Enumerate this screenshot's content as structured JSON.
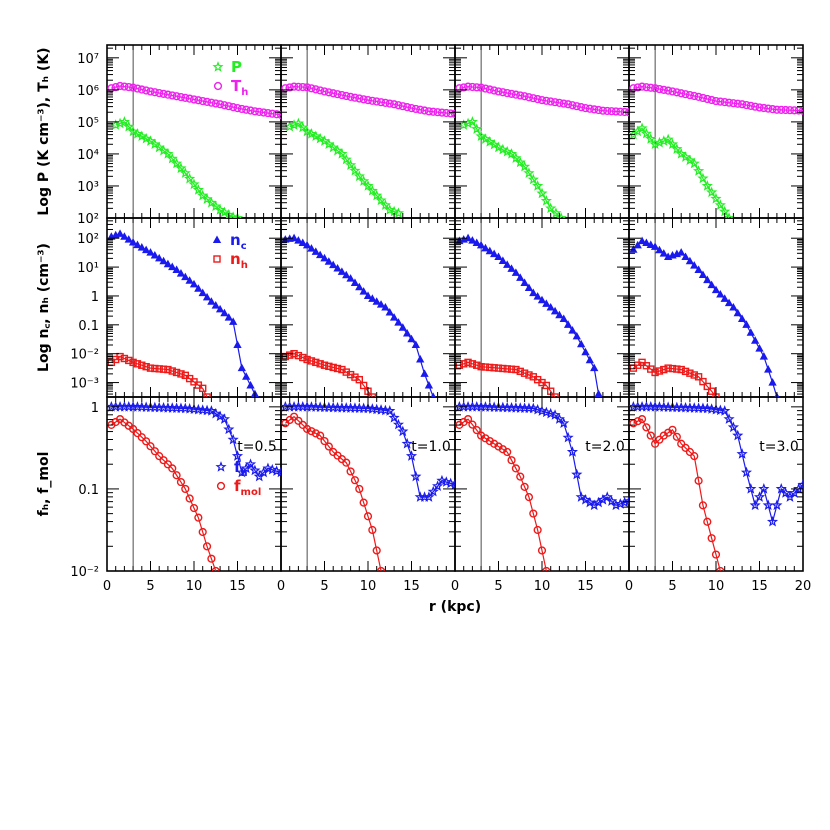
{
  "chart_data": {
    "type": "line",
    "layout": "3 rows x 4 columns of panels, shared x axis",
    "xlabel": "r  (kpc)",
    "xlim": [
      0,
      20
    ],
    "x_ticks": [
      "0",
      "5",
      "10",
      "15",
      "0",
      "5",
      "10",
      "15",
      "0",
      "5",
      "10",
      "15",
      "0",
      "5",
      "10",
      "15",
      "20"
    ],
    "marker_line_x": 3,
    "rows": [
      {
        "ylabel": "Log P (K cm⁻³), Tₕ (K)",
        "scale": "log",
        "ylim_log10": [
          2,
          7.4
        ],
        "y_ticks": [
          {
            "v": 2,
            "t": "10²"
          },
          {
            "v": 3,
            "t": "10³"
          },
          {
            "v": 4,
            "t": "10⁴"
          },
          {
            "v": 5,
            "t": "10⁵"
          },
          {
            "v": 6,
            "t": "10⁶"
          },
          {
            "v": 7,
            "t": "10⁷"
          }
        ],
        "legend": [
          {
            "name": "P",
            "color": "#22ee22",
            "marker": "star"
          },
          {
            "name": "Th",
            "sub": "h",
            "base": "T",
            "color": "#ee22ee",
            "marker": "circle"
          }
        ]
      },
      {
        "ylabel": "Log n꜀, nₕ (cm⁻³)",
        "scale": "log",
        "ylim_log10": [
          -3.5,
          2.7
        ],
        "y_ticks": [
          {
            "v": -3,
            "t": "10⁻³"
          },
          {
            "v": -2,
            "t": "10⁻²"
          },
          {
            "v": -1,
            "t": "0.1"
          },
          {
            "v": 0,
            "t": "1"
          },
          {
            "v": 1,
            "t": "10¹"
          },
          {
            "v": 2,
            "t": "10²"
          }
        ],
        "legend": [
          {
            "name": "nc",
            "base": "n",
            "sub": "c",
            "color": "#1a1aee",
            "marker": "triangle"
          },
          {
            "name": "nh",
            "base": "n",
            "sub": "h",
            "color": "#ee1a1a",
            "marker": "square"
          }
        ]
      },
      {
        "ylabel": "fₕ, f_mol",
        "scale": "log",
        "ylim_log10": [
          -2,
          0.12
        ],
        "y_ticks": [
          {
            "v": -2,
            "t": "10⁻²"
          },
          {
            "v": -1,
            "t": "0.1"
          },
          {
            "v": 0,
            "t": "1"
          }
        ],
        "legend": [
          {
            "name": "fh",
            "base": "f",
            "sub": "h",
            "color": "#1a1aee",
            "marker": "star"
          },
          {
            "name": "fmol",
            "base": "f",
            "sub": "mol",
            "color": "#ee1a1a",
            "marker": "circle"
          }
        ]
      }
    ],
    "panels": [
      {
        "time_label": "t=0.5",
        "P": [
          [
            1,
            4.9
          ],
          [
            2,
            5.0
          ],
          [
            3,
            4.7
          ],
          [
            5,
            4.4
          ],
          [
            7,
            4.0
          ],
          [
            9,
            3.4
          ],
          [
            11,
            2.7
          ],
          [
            13,
            2.25
          ],
          [
            15,
            1.95
          ]
        ],
        "Th": [
          [
            0.5,
            6.05
          ],
          [
            1.5,
            6.12
          ],
          [
            3,
            6.07
          ],
          [
            5,
            5.95
          ],
          [
            8,
            5.8
          ],
          [
            10,
            5.7
          ],
          [
            13,
            5.55
          ],
          [
            15,
            5.43
          ],
          [
            17,
            5.33
          ],
          [
            20,
            5.22
          ]
        ],
        "nc": [
          [
            0.5,
            2.05
          ],
          [
            1.5,
            2.15
          ],
          [
            3,
            1.85
          ],
          [
            5,
            1.5
          ],
          [
            8,
            0.9
          ],
          [
            10,
            0.4
          ],
          [
            12,
            -0.2
          ],
          [
            13.5,
            -0.6
          ],
          [
            14.5,
            -0.9
          ],
          [
            15.5,
            -2.5
          ],
          [
            17,
            -3.4
          ]
        ],
        "nh": [
          [
            0.5,
            -2.3
          ],
          [
            1.5,
            -2.1
          ],
          [
            3,
            -2.3
          ],
          [
            5,
            -2.5
          ],
          [
            7,
            -2.55
          ],
          [
            9,
            -2.75
          ],
          [
            11,
            -3.2
          ],
          [
            11.5,
            -3.5
          ]
        ],
        "fh": [
          [
            0.5,
            0.0
          ],
          [
            3,
            0.0
          ],
          [
            6,
            -0.01
          ],
          [
            9,
            -0.02
          ],
          [
            12,
            -0.05
          ],
          [
            13.5,
            -0.15
          ],
          [
            14.5,
            -0.4
          ],
          [
            15.5,
            -0.8
          ],
          [
            16.5,
            -0.7
          ],
          [
            17.5,
            -0.85
          ],
          [
            18.5,
            -0.75
          ],
          [
            20,
            -0.8
          ]
        ],
        "fmol": [
          [
            0.5,
            -0.22
          ],
          [
            1.5,
            -0.15
          ],
          [
            3,
            -0.27
          ],
          [
            4.5,
            -0.42
          ],
          [
            6,
            -0.6
          ],
          [
            7.5,
            -0.75
          ],
          [
            9,
            -1.0
          ],
          [
            10.5,
            -1.35
          ],
          [
            11.5,
            -1.7
          ],
          [
            12.5,
            -2.0
          ]
        ]
      },
      {
        "time_label": "t=1.0",
        "P": [
          [
            1,
            4.85
          ],
          [
            2,
            4.95
          ],
          [
            3,
            4.7
          ],
          [
            5,
            4.4
          ],
          [
            7,
            4.0
          ],
          [
            9,
            3.3
          ],
          [
            11,
            2.7
          ],
          [
            12.5,
            2.25
          ],
          [
            13.5,
            2.15
          ]
        ],
        "Th": [
          [
            0.5,
            6.05
          ],
          [
            1.5,
            6.1
          ],
          [
            3,
            6.08
          ],
          [
            5,
            5.95
          ],
          [
            8,
            5.78
          ],
          [
            10,
            5.68
          ],
          [
            13,
            5.55
          ],
          [
            15,
            5.43
          ],
          [
            17,
            5.33
          ],
          [
            20,
            5.25
          ]
        ],
        "nc": [
          [
            0.5,
            1.95
          ],
          [
            1.5,
            2.0
          ],
          [
            3,
            1.75
          ],
          [
            5,
            1.3
          ],
          [
            8,
            0.6
          ],
          [
            10,
            0.0
          ],
          [
            12,
            -0.4
          ],
          [
            14,
            -1.1
          ],
          [
            15.5,
            -1.7
          ],
          [
            16.5,
            -2.7
          ],
          [
            17.5,
            -3.5
          ]
        ],
        "nh": [
          [
            0.5,
            -2.1
          ],
          [
            1.5,
            -2.0
          ],
          [
            3,
            -2.2
          ],
          [
            5,
            -2.4
          ],
          [
            7,
            -2.55
          ],
          [
            9,
            -2.9
          ],
          [
            10.5,
            -3.5
          ]
        ],
        "fh": [
          [
            0.5,
            0.0
          ],
          [
            3,
            0.0
          ],
          [
            6,
            -0.01
          ],
          [
            10,
            -0.02
          ],
          [
            12.5,
            -0.05
          ],
          [
            14,
            -0.3
          ],
          [
            15,
            -0.6
          ],
          [
            16,
            -1.1
          ],
          [
            17,
            -1.1
          ],
          [
            18.5,
            -0.9
          ],
          [
            20,
            -0.95
          ]
        ],
        "fmol": [
          [
            0.5,
            -0.2
          ],
          [
            1.5,
            -0.12
          ],
          [
            3,
            -0.27
          ],
          [
            4.5,
            -0.35
          ],
          [
            6,
            -0.55
          ],
          [
            7.5,
            -0.68
          ],
          [
            9,
            -1.0
          ],
          [
            10.5,
            -1.5
          ],
          [
            11.5,
            -2.0
          ]
        ]
      },
      {
        "time_label": "t=2.0",
        "P": [
          [
            1,
            4.9
          ],
          [
            2,
            5.0
          ],
          [
            3,
            4.55
          ],
          [
            5,
            4.2
          ],
          [
            6.5,
            4.0
          ],
          [
            8,
            3.6
          ],
          [
            9.5,
            3.0
          ],
          [
            11,
            2.3
          ],
          [
            12.2,
            2.0
          ]
        ],
        "Th": [
          [
            0.5,
            6.05
          ],
          [
            1.5,
            6.1
          ],
          [
            3,
            6.07
          ],
          [
            5,
            5.95
          ],
          [
            8,
            5.8
          ],
          [
            10,
            5.68
          ],
          [
            13,
            5.55
          ],
          [
            15,
            5.43
          ],
          [
            17,
            5.35
          ],
          [
            20,
            5.3
          ]
        ],
        "nc": [
          [
            0.5,
            1.9
          ],
          [
            1.5,
            2.0
          ],
          [
            3,
            1.75
          ],
          [
            5,
            1.35
          ],
          [
            7,
            0.8
          ],
          [
            9,
            0.1
          ],
          [
            11,
            -0.4
          ],
          [
            12.5,
            -0.8
          ],
          [
            14,
            -1.4
          ],
          [
            16,
            -2.5
          ],
          [
            16.5,
            -3.4
          ]
        ],
        "nh": [
          [
            0.5,
            -2.4
          ],
          [
            1.5,
            -2.3
          ],
          [
            3,
            -2.45
          ],
          [
            5,
            -2.5
          ],
          [
            7,
            -2.55
          ],
          [
            9,
            -2.8
          ],
          [
            10.5,
            -3.1
          ],
          [
            11.5,
            -3.5
          ]
        ],
        "fh": [
          [
            0.5,
            0.0
          ],
          [
            3,
            0.0
          ],
          [
            6,
            -0.01
          ],
          [
            9,
            -0.02
          ],
          [
            11.5,
            -0.1
          ],
          [
            12.5,
            -0.2
          ],
          [
            13.5,
            -0.55
          ],
          [
            14.5,
            -1.1
          ],
          [
            16,
            -1.2
          ],
          [
            17.5,
            -1.1
          ],
          [
            18.5,
            -1.2
          ],
          [
            20,
            -1.15
          ]
        ],
        "fmol": [
          [
            0.5,
            -0.22
          ],
          [
            1.5,
            -0.15
          ],
          [
            3,
            -0.35
          ],
          [
            4.5,
            -0.45
          ],
          [
            6,
            -0.55
          ],
          [
            7.5,
            -0.85
          ],
          [
            8.5,
            -1.1
          ],
          [
            9.5,
            -1.5
          ],
          [
            10.5,
            -2.0
          ]
        ]
      },
      {
        "time_label": "t=3.0",
        "P": [
          [
            0.5,
            4.6
          ],
          [
            1.5,
            4.8
          ],
          [
            3,
            4.3
          ],
          [
            4.5,
            4.45
          ],
          [
            6,
            4.0
          ],
          [
            7.5,
            3.7
          ],
          [
            9,
            3.0
          ],
          [
            10.5,
            2.4
          ],
          [
            11.5,
            2.0
          ]
        ],
        "Th": [
          [
            0.5,
            6.05
          ],
          [
            1.5,
            6.1
          ],
          [
            3,
            6.05
          ],
          [
            5,
            5.95
          ],
          [
            8,
            5.78
          ],
          [
            10,
            5.65
          ],
          [
            13,
            5.55
          ],
          [
            15,
            5.45
          ],
          [
            17,
            5.38
          ],
          [
            20,
            5.35
          ]
        ],
        "nc": [
          [
            0.5,
            1.6
          ],
          [
            1.5,
            1.9
          ],
          [
            3,
            1.7
          ],
          [
            4.5,
            1.35
          ],
          [
            6,
            1.5
          ],
          [
            8,
            0.9
          ],
          [
            10,
            0.2
          ],
          [
            12,
            -0.4
          ],
          [
            13.5,
            -1.0
          ],
          [
            15.5,
            -2.1
          ],
          [
            16.5,
            -3.0
          ],
          [
            17,
            -3.5
          ]
        ],
        "nh": [
          [
            0.5,
            -2.5
          ],
          [
            1.5,
            -2.3
          ],
          [
            3,
            -2.65
          ],
          [
            4.5,
            -2.5
          ],
          [
            6,
            -2.55
          ],
          [
            8,
            -2.8
          ],
          [
            9.5,
            -3.3
          ],
          [
            10,
            -3.5
          ]
        ],
        "fh": [
          [
            0.5,
            0.0
          ],
          [
            3,
            0.0
          ],
          [
            6,
            -0.01
          ],
          [
            9,
            -0.02
          ],
          [
            11,
            -0.05
          ],
          [
            12.5,
            -0.35
          ],
          [
            13.5,
            -0.8
          ],
          [
            14.5,
            -1.2
          ],
          [
            15.5,
            -1.0
          ],
          [
            16.5,
            -1.4
          ],
          [
            17.5,
            -1.0
          ],
          [
            18.5,
            -1.1
          ],
          [
            20,
            -0.95
          ]
        ],
        "fmol": [
          [
            0.5,
            -0.2
          ],
          [
            1.5,
            -0.15
          ],
          [
            3,
            -0.45
          ],
          [
            4,
            -0.35
          ],
          [
            5,
            -0.28
          ],
          [
            6,
            -0.45
          ],
          [
            7.5,
            -0.6
          ],
          [
            8.5,
            -1.2
          ],
          [
            9.5,
            -1.6
          ],
          [
            10.5,
            -2.0
          ]
        ]
      }
    ]
  }
}
